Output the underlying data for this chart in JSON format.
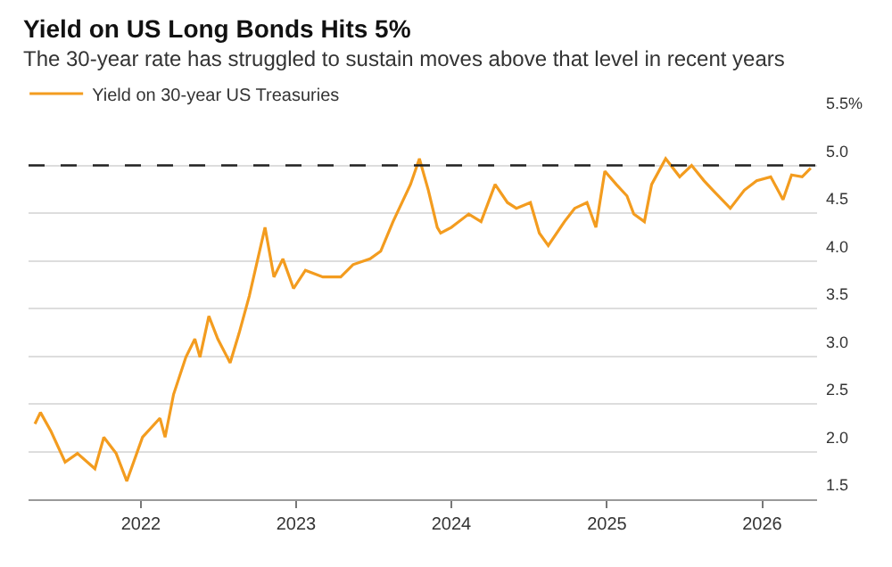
{
  "chart_data": {
    "type": "line",
    "title": "Yield on US Long Bonds Hits 5%",
    "subtitle": "The 30-year rate has struggled to sustain moves above that level in recent years",
    "x": [
      "2021-04-27",
      "2021-05-10",
      "2021-06-04",
      "2021-07-07",
      "2021-08-05",
      "2021-09-15",
      "2021-10-06",
      "2021-11-04",
      "2021-11-29",
      "2022-01-05",
      "2022-02-15",
      "2022-02-27",
      "2022-03-19",
      "2022-04-17",
      "2022-05-08",
      "2022-05-20",
      "2022-06-10",
      "2022-07-01",
      "2022-07-30",
      "2022-08-20",
      "2022-09-13",
      "2022-10-20",
      "2022-11-10",
      "2022-12-01",
      "2022-12-26",
      "2023-01-23",
      "2023-03-05",
      "2023-04-16",
      "2023-05-15",
      "2023-06-24",
      "2023-07-19",
      "2023-08-17",
      "2023-09-27",
      "2023-10-18",
      "2023-11-08",
      "2023-11-29",
      "2023-12-07",
      "2024-01-01",
      "2024-02-11",
      "2024-03-11",
      "2024-04-13",
      "2024-05-12",
      "2024-06-02",
      "2024-07-05",
      "2024-07-26",
      "2024-08-16",
      "2024-09-23",
      "2024-10-17",
      "2024-11-15",
      "2024-12-06",
      "2024-12-27",
      "2025-01-23",
      "2025-02-17",
      "2025-03-05",
      "2025-03-30",
      "2025-04-16",
      "2025-05-19",
      "2025-06-21",
      "2025-07-19",
      "2025-08-17",
      "2025-09-07",
      "2025-10-18",
      "2025-11-20",
      "2025-12-19",
      "2026-01-21",
      "2026-02-19",
      "2026-03-11",
      "2026-04-05",
      "2026-04-25"
    ],
    "series": [
      {
        "name": "Yield on 30-year US Treasuries",
        "color": "#f39c1f",
        "values": [
          2.29,
          2.41,
          2.21,
          1.89,
          1.98,
          1.82,
          2.15,
          1.98,
          1.69,
          2.15,
          2.35,
          2.15,
          2.6,
          2.99,
          3.18,
          2.99,
          3.42,
          3.18,
          2.93,
          3.24,
          3.63,
          4.35,
          3.83,
          4.02,
          3.71,
          3.9,
          3.83,
          3.83,
          3.96,
          4.02,
          4.1,
          4.41,
          4.8,
          5.07,
          4.74,
          4.35,
          4.29,
          4.35,
          4.49,
          4.41,
          4.8,
          4.61,
          4.55,
          4.61,
          4.29,
          4.16,
          4.41,
          4.55,
          4.61,
          4.35,
          4.94,
          4.8,
          4.68,
          4.49,
          4.41,
          4.8,
          5.07,
          4.88,
          5.0,
          4.84,
          4.74,
          4.55,
          4.74,
          4.84,
          4.88,
          4.64,
          4.9,
          4.88,
          4.97
        ]
      }
    ],
    "xlim": [
      "2021-04-12",
      "2026-05-10"
    ],
    "xticks": [
      {
        "value": "2022-01-01",
        "label": "2022"
      },
      {
        "value": "2023-01-01",
        "label": "2023"
      },
      {
        "value": "2024-01-01",
        "label": "2024"
      },
      {
        "value": "2025-01-01",
        "label": "2025"
      },
      {
        "value": "2026-01-01",
        "label": "2026"
      }
    ],
    "ylim": [
      1.5,
      5.5
    ],
    "yticks": [
      1.5,
      {
        "value": 2,
        "label": "2.0"
      },
      2.5,
      {
        "value": 3,
        "label": "3.0"
      },
      3.5,
      {
        "value": 4,
        "label": "4.0"
      },
      4.5,
      {
        "value": 5,
        "label": "5.0"
      },
      {
        "value": 5.5,
        "label": "5.5%"
      }
    ],
    "ref_lines": [
      {
        "axis": "y",
        "value": 5.0,
        "color": "#222222",
        "line_style": "dashed"
      }
    ],
    "grid": "y",
    "legend": "top left",
    "marker": "none",
    "line_style": "solid"
  }
}
